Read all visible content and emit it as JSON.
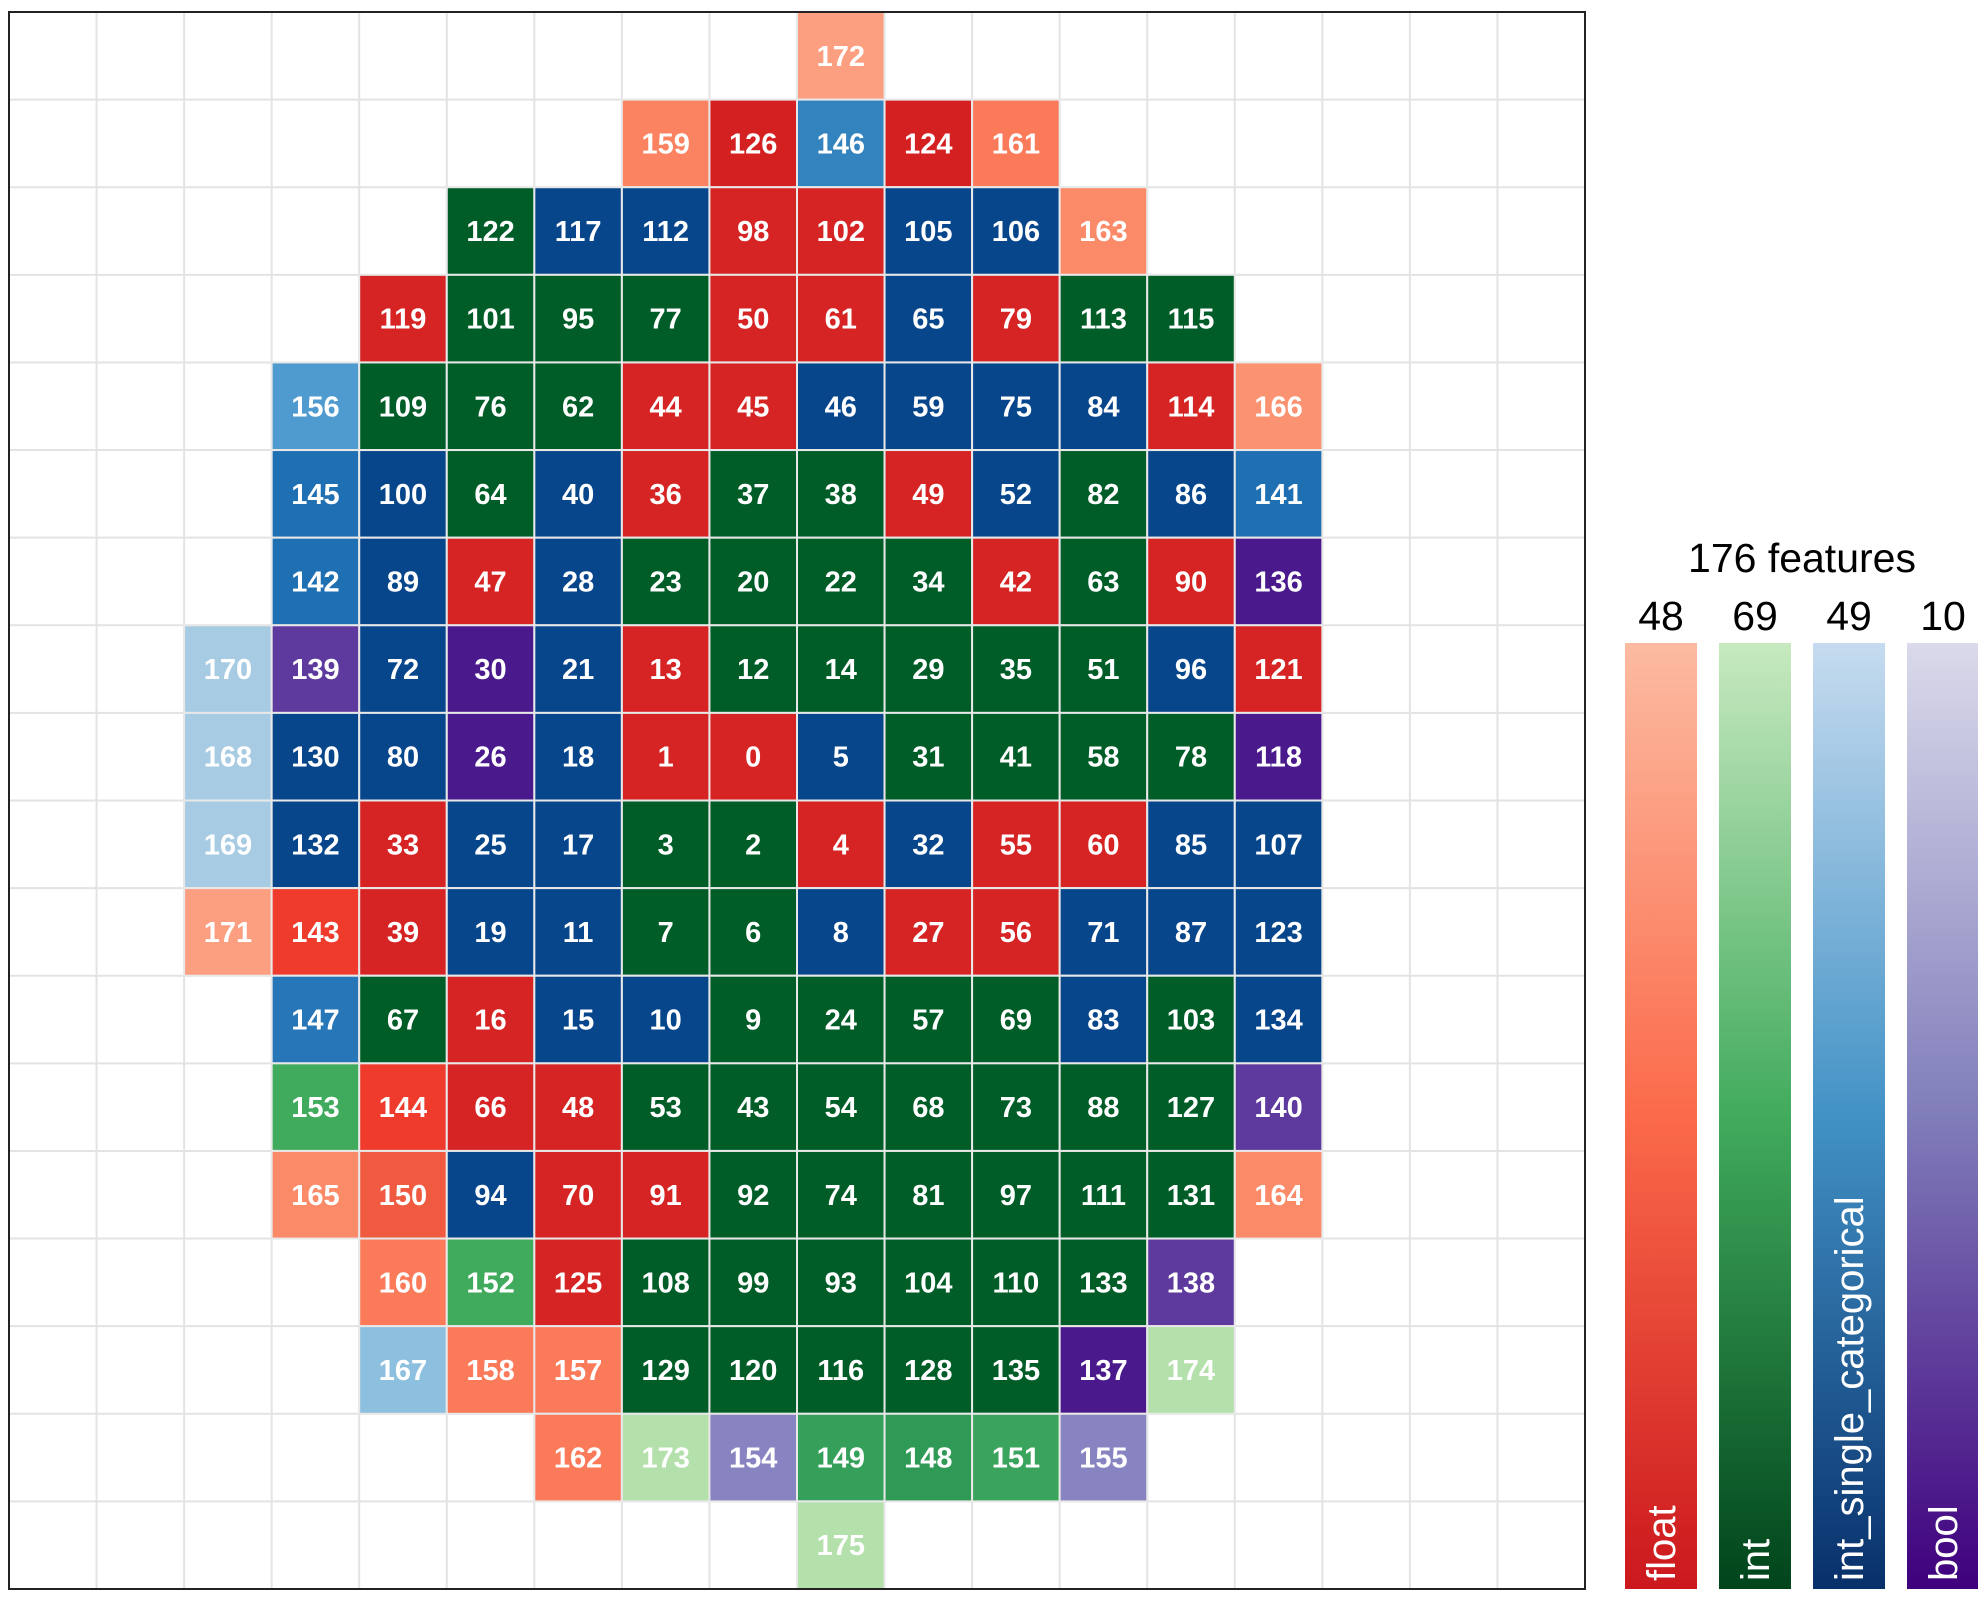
{
  "chart_data": {
    "type": "heatmap",
    "legend": {
      "title": "176 features",
      "placement": "right",
      "categories": [
        {
          "name": "float",
          "count": "48",
          "color_light": "#fcbba1",
          "color_mid": "#fb6a4a",
          "color_dark": "#cb181d"
        },
        {
          "name": "int",
          "count": "69",
          "color_light": "#c7e9c0",
          "color_mid": "#41ab5d",
          "color_dark": "#00441b"
        },
        {
          "name": "int_single_categorical",
          "count": "49",
          "color_light": "#c6dbef",
          "color_mid": "#4292c6",
          "color_dark": "#08306b"
        },
        {
          "name": "bool",
          "count": "10",
          "color_light": "#dadaeb",
          "color_mid": "#807dba",
          "color_dark": "#3f007d"
        }
      ]
    },
    "grid": {
      "cols": 18,
      "rows": 18,
      "grid_lines": true
    },
    "cells": [
      {
        "row": 0,
        "col": 9,
        "v": "172",
        "color": "#fc9f80"
      },
      {
        "row": 1,
        "col": 7,
        "v": "159",
        "color": "#fb8361"
      },
      {
        "row": 1,
        "col": 8,
        "v": "126",
        "color": "#d42020"
      },
      {
        "row": 1,
        "col": 9,
        "v": "146",
        "color": "#3383be"
      },
      {
        "row": 1,
        "col": 10,
        "v": "124",
        "color": "#d42020"
      },
      {
        "row": 1,
        "col": 11,
        "v": "161",
        "color": "#fb7a5a"
      },
      {
        "row": 2,
        "col": 5,
        "v": "122",
        "color": "#005d28"
      },
      {
        "row": 2,
        "col": 6,
        "v": "117",
        "color": "#08468c"
      },
      {
        "row": 2,
        "col": 7,
        "v": "112",
        "color": "#08468c"
      },
      {
        "row": 2,
        "col": 8,
        "v": "98",
        "color": "#d62424"
      },
      {
        "row": 2,
        "col": 9,
        "v": "102",
        "color": "#d62424"
      },
      {
        "row": 2,
        "col": 10,
        "v": "105",
        "color": "#08468c"
      },
      {
        "row": 2,
        "col": 11,
        "v": "106",
        "color": "#08468c"
      },
      {
        "row": 2,
        "col": 12,
        "v": "163",
        "color": "#fb8a69"
      },
      {
        "row": 3,
        "col": 4,
        "v": "119",
        "color": "#d62424"
      },
      {
        "row": 3,
        "col": 5,
        "v": "101",
        "color": "#005d28"
      },
      {
        "row": 3,
        "col": 6,
        "v": "95",
        "color": "#005d28"
      },
      {
        "row": 3,
        "col": 7,
        "v": "77",
        "color": "#005d28"
      },
      {
        "row": 3,
        "col": 8,
        "v": "50",
        "color": "#d62424"
      },
      {
        "row": 3,
        "col": 9,
        "v": "61",
        "color": "#d62424"
      },
      {
        "row": 3,
        "col": 10,
        "v": "65",
        "color": "#08468c"
      },
      {
        "row": 3,
        "col": 11,
        "v": "79",
        "color": "#d62424"
      },
      {
        "row": 3,
        "col": 12,
        "v": "113",
        "color": "#005d28"
      },
      {
        "row": 3,
        "col": 13,
        "v": "115",
        "color": "#005d28"
      },
      {
        "row": 4,
        "col": 3,
        "v": "156",
        "color": "#4f9bd0"
      },
      {
        "row": 4,
        "col": 4,
        "v": "109",
        "color": "#005d28"
      },
      {
        "row": 4,
        "col": 5,
        "v": "76",
        "color": "#005d28"
      },
      {
        "row": 4,
        "col": 6,
        "v": "62",
        "color": "#005d28"
      },
      {
        "row": 4,
        "col": 7,
        "v": "44",
        "color": "#d62424"
      },
      {
        "row": 4,
        "col": 8,
        "v": "45",
        "color": "#d62424"
      },
      {
        "row": 4,
        "col": 9,
        "v": "46",
        "color": "#08468c"
      },
      {
        "row": 4,
        "col": 10,
        "v": "59",
        "color": "#08468c"
      },
      {
        "row": 4,
        "col": 11,
        "v": "75",
        "color": "#08468c"
      },
      {
        "row": 4,
        "col": 12,
        "v": "84",
        "color": "#08468c"
      },
      {
        "row": 4,
        "col": 13,
        "v": "114",
        "color": "#d62424"
      },
      {
        "row": 4,
        "col": 14,
        "v": "166",
        "color": "#fb9372"
      },
      {
        "row": 5,
        "col": 3,
        "v": "145",
        "color": "#1f6fb3"
      },
      {
        "row": 5,
        "col": 4,
        "v": "100",
        "color": "#08468c"
      },
      {
        "row": 5,
        "col": 5,
        "v": "64",
        "color": "#005d28"
      },
      {
        "row": 5,
        "col": 6,
        "v": "40",
        "color": "#08468c"
      },
      {
        "row": 5,
        "col": 7,
        "v": "36",
        "color": "#d62424"
      },
      {
        "row": 5,
        "col": 8,
        "v": "37",
        "color": "#005d28"
      },
      {
        "row": 5,
        "col": 9,
        "v": "38",
        "color": "#005d28"
      },
      {
        "row": 5,
        "col": 10,
        "v": "49",
        "color": "#d62424"
      },
      {
        "row": 5,
        "col": 11,
        "v": "52",
        "color": "#08468c"
      },
      {
        "row": 5,
        "col": 12,
        "v": "82",
        "color": "#005d28"
      },
      {
        "row": 5,
        "col": 13,
        "v": "86",
        "color": "#08468c"
      },
      {
        "row": 5,
        "col": 14,
        "v": "141",
        "color": "#1f6fb3"
      },
      {
        "row": 6,
        "col": 3,
        "v": "142",
        "color": "#1f6fb3"
      },
      {
        "row": 6,
        "col": 4,
        "v": "89",
        "color": "#08468c"
      },
      {
        "row": 6,
        "col": 5,
        "v": "47",
        "color": "#d62424"
      },
      {
        "row": 6,
        "col": 6,
        "v": "28",
        "color": "#08468c"
      },
      {
        "row": 6,
        "col": 7,
        "v": "23",
        "color": "#005d28"
      },
      {
        "row": 6,
        "col": 8,
        "v": "20",
        "color": "#005d28"
      },
      {
        "row": 6,
        "col": 9,
        "v": "22",
        "color": "#005d28"
      },
      {
        "row": 6,
        "col": 10,
        "v": "34",
        "color": "#005d28"
      },
      {
        "row": 6,
        "col": 11,
        "v": "42",
        "color": "#d62424"
      },
      {
        "row": 6,
        "col": 12,
        "v": "63",
        "color": "#005d28"
      },
      {
        "row": 6,
        "col": 13,
        "v": "90",
        "color": "#d62424"
      },
      {
        "row": 6,
        "col": 14,
        "v": "136",
        "color": "#4a1a8c"
      },
      {
        "row": 7,
        "col": 2,
        "v": "170",
        "color": "#a6cbe3"
      },
      {
        "row": 7,
        "col": 3,
        "v": "139",
        "color": "#5e3a9e"
      },
      {
        "row": 7,
        "col": 4,
        "v": "72",
        "color": "#08468c"
      },
      {
        "row": 7,
        "col": 5,
        "v": "30",
        "color": "#4a1a8c"
      },
      {
        "row": 7,
        "col": 6,
        "v": "21",
        "color": "#08468c"
      },
      {
        "row": 7,
        "col": 7,
        "v": "13",
        "color": "#d62424"
      },
      {
        "row": 7,
        "col": 8,
        "v": "12",
        "color": "#005d28"
      },
      {
        "row": 7,
        "col": 9,
        "v": "14",
        "color": "#005d28"
      },
      {
        "row": 7,
        "col": 10,
        "v": "29",
        "color": "#005d28"
      },
      {
        "row": 7,
        "col": 11,
        "v": "35",
        "color": "#005d28"
      },
      {
        "row": 7,
        "col": 12,
        "v": "51",
        "color": "#005d28"
      },
      {
        "row": 7,
        "col": 13,
        "v": "96",
        "color": "#08468c"
      },
      {
        "row": 7,
        "col": 14,
        "v": "121",
        "color": "#d62424"
      },
      {
        "row": 8,
        "col": 2,
        "v": "168",
        "color": "#a6cbe3"
      },
      {
        "row": 8,
        "col": 3,
        "v": "130",
        "color": "#08468c"
      },
      {
        "row": 8,
        "col": 4,
        "v": "80",
        "color": "#08468c"
      },
      {
        "row": 8,
        "col": 5,
        "v": "26",
        "color": "#4a1a8c"
      },
      {
        "row": 8,
        "col": 6,
        "v": "18",
        "color": "#08468c"
      },
      {
        "row": 8,
        "col": 7,
        "v": "1",
        "color": "#d62424"
      },
      {
        "row": 8,
        "col": 8,
        "v": "0",
        "color": "#d62424"
      },
      {
        "row": 8,
        "col": 9,
        "v": "5",
        "color": "#08468c"
      },
      {
        "row": 8,
        "col": 10,
        "v": "31",
        "color": "#005d28"
      },
      {
        "row": 8,
        "col": 11,
        "v": "41",
        "color": "#005d28"
      },
      {
        "row": 8,
        "col": 12,
        "v": "58",
        "color": "#005d28"
      },
      {
        "row": 8,
        "col": 13,
        "v": "78",
        "color": "#005d28"
      },
      {
        "row": 8,
        "col": 14,
        "v": "118",
        "color": "#4a1a8c"
      },
      {
        "row": 9,
        "col": 2,
        "v": "169",
        "color": "#a6cbe3"
      },
      {
        "row": 9,
        "col": 3,
        "v": "132",
        "color": "#08468c"
      },
      {
        "row": 9,
        "col": 4,
        "v": "33",
        "color": "#d62424"
      },
      {
        "row": 9,
        "col": 5,
        "v": "25",
        "color": "#08468c"
      },
      {
        "row": 9,
        "col": 6,
        "v": "17",
        "color": "#08468c"
      },
      {
        "row": 9,
        "col": 7,
        "v": "3",
        "color": "#005d28"
      },
      {
        "row": 9,
        "col": 8,
        "v": "2",
        "color": "#005d28"
      },
      {
        "row": 9,
        "col": 9,
        "v": "4",
        "color": "#d62424"
      },
      {
        "row": 9,
        "col": 10,
        "v": "32",
        "color": "#08468c"
      },
      {
        "row": 9,
        "col": 11,
        "v": "55",
        "color": "#d62424"
      },
      {
        "row": 9,
        "col": 12,
        "v": "60",
        "color": "#d62424"
      },
      {
        "row": 9,
        "col": 13,
        "v": "85",
        "color": "#08468c"
      },
      {
        "row": 9,
        "col": 14,
        "v": "107",
        "color": "#08468c"
      },
      {
        "row": 10,
        "col": 2,
        "v": "171",
        "color": "#fc9f80"
      },
      {
        "row": 10,
        "col": 3,
        "v": "143",
        "color": "#ef3b2c"
      },
      {
        "row": 10,
        "col": 4,
        "v": "39",
        "color": "#d62424"
      },
      {
        "row": 10,
        "col": 5,
        "v": "19",
        "color": "#08468c"
      },
      {
        "row": 10,
        "col": 6,
        "v": "11",
        "color": "#08468c"
      },
      {
        "row": 10,
        "col": 7,
        "v": "7",
        "color": "#005d28"
      },
      {
        "row": 10,
        "col": 8,
        "v": "6",
        "color": "#005d28"
      },
      {
        "row": 10,
        "col": 9,
        "v": "8",
        "color": "#08468c"
      },
      {
        "row": 10,
        "col": 10,
        "v": "27",
        "color": "#d62424"
      },
      {
        "row": 10,
        "col": 11,
        "v": "56",
        "color": "#d62424"
      },
      {
        "row": 10,
        "col": 12,
        "v": "71",
        "color": "#08468c"
      },
      {
        "row": 10,
        "col": 13,
        "v": "87",
        "color": "#08468c"
      },
      {
        "row": 10,
        "col": 14,
        "v": "123",
        "color": "#08468c"
      },
      {
        "row": 11,
        "col": 3,
        "v": "147",
        "color": "#2676b8"
      },
      {
        "row": 11,
        "col": 4,
        "v": "67",
        "color": "#005d28"
      },
      {
        "row": 11,
        "col": 5,
        "v": "16",
        "color": "#d62424"
      },
      {
        "row": 11,
        "col": 6,
        "v": "15",
        "color": "#08468c"
      },
      {
        "row": 11,
        "col": 7,
        "v": "10",
        "color": "#08468c"
      },
      {
        "row": 11,
        "col": 8,
        "v": "9",
        "color": "#005d28"
      },
      {
        "row": 11,
        "col": 9,
        "v": "24",
        "color": "#005d28"
      },
      {
        "row": 11,
        "col": 10,
        "v": "57",
        "color": "#005d28"
      },
      {
        "row": 11,
        "col": 11,
        "v": "69",
        "color": "#005d28"
      },
      {
        "row": 11,
        "col": 12,
        "v": "83",
        "color": "#08468c"
      },
      {
        "row": 11,
        "col": 13,
        "v": "103",
        "color": "#005d28"
      },
      {
        "row": 11,
        "col": 14,
        "v": "134",
        "color": "#08468c"
      },
      {
        "row": 12,
        "col": 3,
        "v": "153",
        "color": "#41ab5d"
      },
      {
        "row": 12,
        "col": 4,
        "v": "144",
        "color": "#ef3b2c"
      },
      {
        "row": 12,
        "col": 5,
        "v": "66",
        "color": "#d62424"
      },
      {
        "row": 12,
        "col": 6,
        "v": "48",
        "color": "#d62424"
      },
      {
        "row": 12,
        "col": 7,
        "v": "53",
        "color": "#005d28"
      },
      {
        "row": 12,
        "col": 8,
        "v": "43",
        "color": "#005d28"
      },
      {
        "row": 12,
        "col": 9,
        "v": "54",
        "color": "#005d28"
      },
      {
        "row": 12,
        "col": 10,
        "v": "68",
        "color": "#005d28"
      },
      {
        "row": 12,
        "col": 11,
        "v": "73",
        "color": "#005d28"
      },
      {
        "row": 12,
        "col": 12,
        "v": "88",
        "color": "#005d28"
      },
      {
        "row": 12,
        "col": 13,
        "v": "127",
        "color": "#005d28"
      },
      {
        "row": 12,
        "col": 14,
        "v": "140",
        "color": "#5e3a9e"
      },
      {
        "row": 13,
        "col": 3,
        "v": "165",
        "color": "#fb8a69"
      },
      {
        "row": 13,
        "col": 4,
        "v": "150",
        "color": "#f05a40"
      },
      {
        "row": 13,
        "col": 5,
        "v": "94",
        "color": "#08468c"
      },
      {
        "row": 13,
        "col": 6,
        "v": "70",
        "color": "#d62424"
      },
      {
        "row": 13,
        "col": 7,
        "v": "91",
        "color": "#d62424"
      },
      {
        "row": 13,
        "col": 8,
        "v": "92",
        "color": "#005d28"
      },
      {
        "row": 13,
        "col": 9,
        "v": "74",
        "color": "#005d28"
      },
      {
        "row": 13,
        "col": 10,
        "v": "81",
        "color": "#005d28"
      },
      {
        "row": 13,
        "col": 11,
        "v": "97",
        "color": "#005d28"
      },
      {
        "row": 13,
        "col": 12,
        "v": "111",
        "color": "#005d28"
      },
      {
        "row": 13,
        "col": 13,
        "v": "131",
        "color": "#005d28"
      },
      {
        "row": 13,
        "col": 14,
        "v": "164",
        "color": "#fb8a69"
      },
      {
        "row": 14,
        "col": 4,
        "v": "160",
        "color": "#fb7a5a"
      },
      {
        "row": 14,
        "col": 5,
        "v": "152",
        "color": "#41ab5d"
      },
      {
        "row": 14,
        "col": 6,
        "v": "125",
        "color": "#d62424"
      },
      {
        "row": 14,
        "col": 7,
        "v": "108",
        "color": "#005d28"
      },
      {
        "row": 14,
        "col": 8,
        "v": "99",
        "color": "#005d28"
      },
      {
        "row": 14,
        "col": 9,
        "v": "93",
        "color": "#005d28"
      },
      {
        "row": 14,
        "col": 10,
        "v": "104",
        "color": "#005d28"
      },
      {
        "row": 14,
        "col": 11,
        "v": "110",
        "color": "#005d28"
      },
      {
        "row": 14,
        "col": 12,
        "v": "133",
        "color": "#005d28"
      },
      {
        "row": 14,
        "col": 13,
        "v": "138",
        "color": "#5e3a9e"
      },
      {
        "row": 15,
        "col": 4,
        "v": "167",
        "color": "#8cc0de"
      },
      {
        "row": 15,
        "col": 5,
        "v": "158",
        "color": "#fb7a5a"
      },
      {
        "row": 15,
        "col": 6,
        "v": "157",
        "color": "#fb7a5a"
      },
      {
        "row": 15,
        "col": 7,
        "v": "129",
        "color": "#005d28"
      },
      {
        "row": 15,
        "col": 8,
        "v": "120",
        "color": "#005d28"
      },
      {
        "row": 15,
        "col": 9,
        "v": "116",
        "color": "#005d28"
      },
      {
        "row": 15,
        "col": 10,
        "v": "128",
        "color": "#005d28"
      },
      {
        "row": 15,
        "col": 11,
        "v": "135",
        "color": "#005d28"
      },
      {
        "row": 15,
        "col": 12,
        "v": "137",
        "color": "#4a1a8c"
      },
      {
        "row": 15,
        "col": 13,
        "v": "174",
        "color": "#b3e0ab"
      },
      {
        "row": 16,
        "col": 6,
        "v": "162",
        "color": "#fb7a5a"
      },
      {
        "row": 16,
        "col": 7,
        "v": "173",
        "color": "#b3e0ab"
      },
      {
        "row": 16,
        "col": 8,
        "v": "154",
        "color": "#8884c1"
      },
      {
        "row": 16,
        "col": 9,
        "v": "149",
        "color": "#35a05a"
      },
      {
        "row": 16,
        "col": 10,
        "v": "148",
        "color": "#2e9a55"
      },
      {
        "row": 16,
        "col": 11,
        "v": "151",
        "color": "#3aa35c"
      },
      {
        "row": 16,
        "col": 12,
        "v": "155",
        "color": "#8884c1"
      },
      {
        "row": 17,
        "col": 9,
        "v": "175",
        "color": "#b3e0ab"
      }
    ]
  }
}
